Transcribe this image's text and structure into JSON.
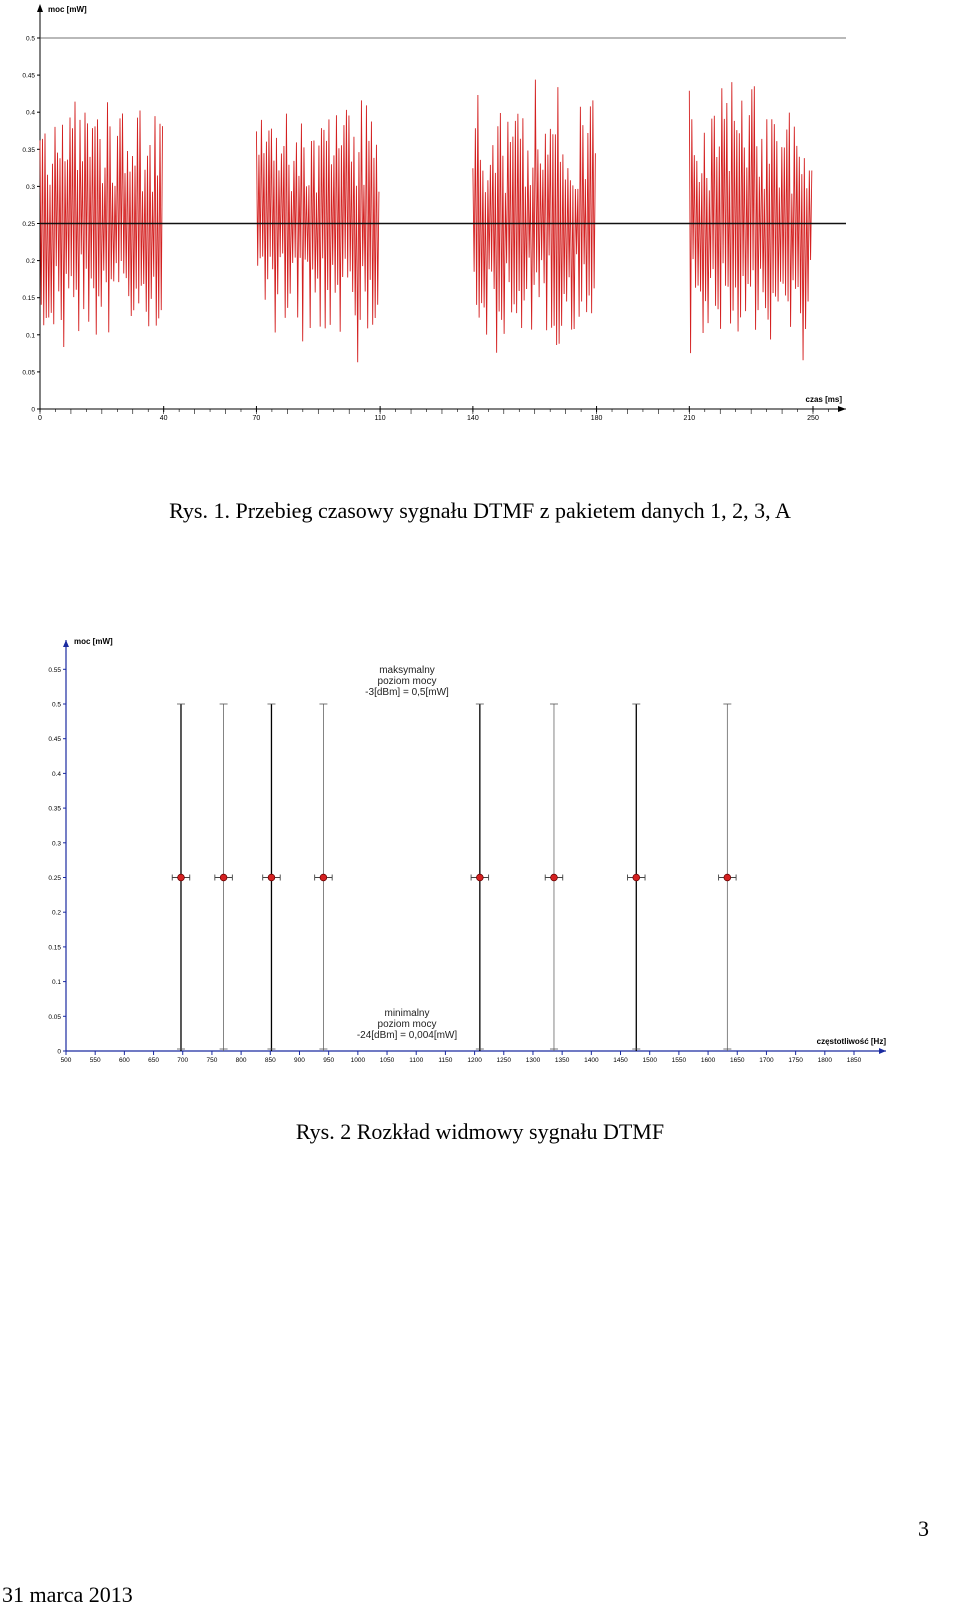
{
  "figures": [
    {
      "caption": "Rys. 1. Przebieg czasowy sygnału DTMF z pakietem danych 1, 2, 3, A"
    },
    {
      "caption": "Rys. 2 Rozkład widmowy sygnału DTMF"
    }
  ],
  "footer": {
    "date": "31 marca 2013",
    "page_number": "3"
  },
  "chart_data": [
    {
      "type": "line",
      "xlabel": "czas [ms]",
      "ylabel": "moc [mW]",
      "xlim": [
        0,
        260
      ],
      "ylim": [
        0,
        0.5
      ],
      "x_ticks": [
        "0",
        "40",
        "70",
        "110",
        "140",
        "180",
        "210",
        "250"
      ],
      "x_tick_values": [
        0,
        40,
        70,
        110,
        140,
        180,
        210,
        250
      ],
      "y_ticks": [
        "0",
        "0.05",
        "0.1",
        "0.15",
        "0.2",
        "0.25",
        "0.3",
        "0.35",
        "0.4",
        "0.45",
        "0.5"
      ],
      "y_tick_values": [
        0,
        0.05,
        0.1,
        0.15,
        0.2,
        0.25,
        0.3,
        0.35,
        0.4,
        0.45,
        0.5
      ],
      "reference_line": 0.25,
      "bursts": [
        {
          "x_start": 0,
          "x_end": 40,
          "y_min": 0.06,
          "y_max": 0.45
        },
        {
          "x_start": 70,
          "x_end": 110,
          "y_min": 0.06,
          "y_max": 0.42
        },
        {
          "x_start": 140,
          "x_end": 180,
          "y_min": 0.05,
          "y_max": 0.45
        },
        {
          "x_start": 210,
          "x_end": 250,
          "y_min": 0.06,
          "y_max": 0.45
        }
      ],
      "series_color": "#d42020",
      "grid": false
    },
    {
      "type": "scatter",
      "xlabel": "częstotliwość [Hz]",
      "ylabel": "moc [mW]",
      "xlim": [
        500,
        1880
      ],
      "ylim": [
        0,
        0.57
      ],
      "x_ticks": [
        "500",
        "550",
        "600",
        "650",
        "700",
        "750",
        "800",
        "850",
        "900",
        "950",
        "1000",
        "1050",
        "1100",
        "1150",
        "1200",
        "1250",
        "1300",
        "1350",
        "1400",
        "1450",
        "1500",
        "1550",
        "1600",
        "1650",
        "1700",
        "1750",
        "1800",
        "1850"
      ],
      "y_ticks": [
        "0",
        "0.05",
        "0.1",
        "0.15",
        "0.2",
        "0.25",
        "0.3",
        "0.35",
        "0.4",
        "0.45",
        "0.5",
        "0.55"
      ],
      "y_tick_values": [
        0,
        0.05,
        0.1,
        0.15,
        0.2,
        0.25,
        0.3,
        0.35,
        0.4,
        0.45,
        0.5,
        0.55
      ],
      "points": [
        {
          "x": 697,
          "y": 0.25,
          "y_min": 0,
          "y_max": 0.5
        },
        {
          "x": 770,
          "y": 0.25,
          "y_min": 0,
          "y_max": 0.5
        },
        {
          "x": 852,
          "y": 0.25,
          "y_min": 0,
          "y_max": 0.5
        },
        {
          "x": 941,
          "y": 0.25,
          "y_min": 0,
          "y_max": 0.5
        },
        {
          "x": 1209,
          "y": 0.25,
          "y_min": 0,
          "y_max": 0.5
        },
        {
          "x": 1336,
          "y": 0.25,
          "y_min": 0,
          "y_max": 0.5
        },
        {
          "x": 1477,
          "y": 0.25,
          "y_min": 0,
          "y_max": 0.5
        },
        {
          "x": 1633,
          "y": 0.25,
          "y_min": 0,
          "y_max": 0.5
        }
      ],
      "x_error_hz": 15,
      "annotations": [
        {
          "lines": [
            "maksymalny",
            "poziom mocy",
            "-3[dBm] = 0,5[mW]"
          ]
        },
        {
          "lines": [
            "minimalny",
            "poziom mocy",
            "-24[dBm] = 0,004[mW]"
          ]
        }
      ],
      "marker_color": "#d42020",
      "axis_color": "#1a2aa0",
      "grid": false
    }
  ]
}
